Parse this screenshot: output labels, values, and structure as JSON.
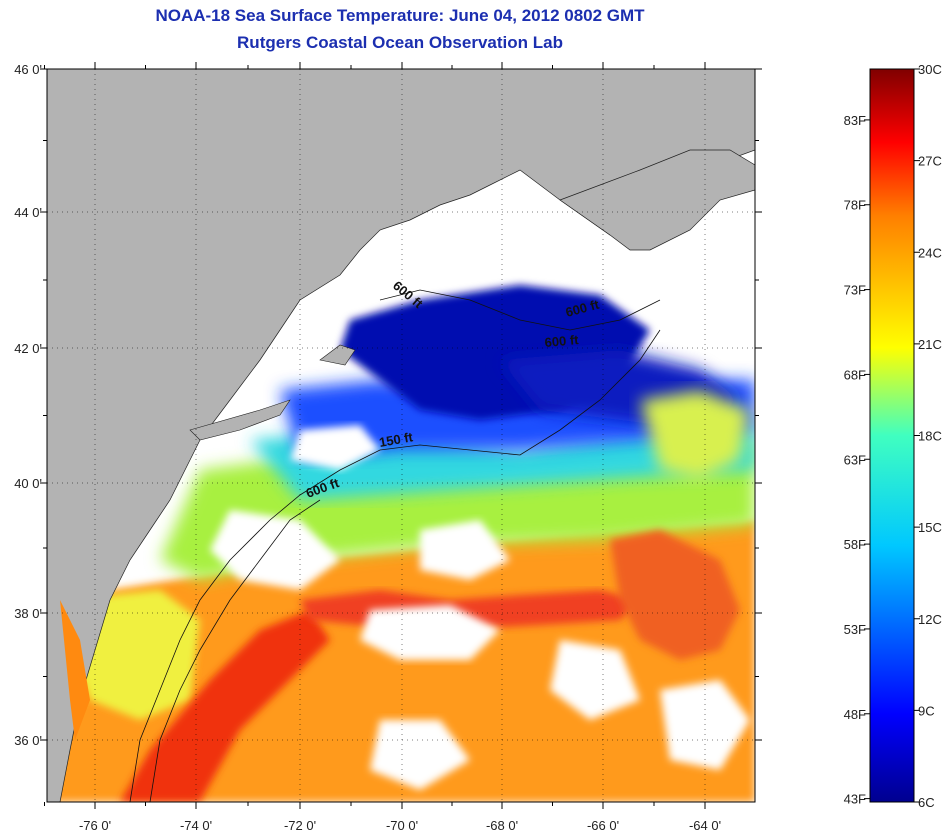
{
  "title": "NOAA-18 Sea Surface Temperature:  June 04, 2012 0802 GMT",
  "subtitle": "Rutgers Coastal Ocean Observation Lab",
  "lat_labels": [
    "46 0'",
    "44 0'",
    "42 0'",
    "40 0'",
    "38 0'",
    "36 0'"
  ],
  "lon_labels": [
    "-76 0'",
    "-74 0'",
    "-72 0'",
    "-70 0'",
    "-68 0'",
    "-66 0'",
    "-64 0'"
  ],
  "contour_labels": [
    "600 ft",
    "600 ft",
    "600 ft",
    "150 ft",
    "600 ft"
  ],
  "colorbar": {
    "fahrenheit": [
      "83F",
      "78F",
      "73F",
      "68F",
      "63F",
      "58F",
      "53F",
      "48F",
      "43F"
    ],
    "celsius": [
      "30C",
      "27C",
      "24C",
      "21C",
      "18C",
      "15C",
      "12C",
      "9C",
      "6C"
    ]
  },
  "colors": {
    "land": "#b3b3b3",
    "cloud": "#ffffff",
    "title": "#1c2fb0"
  }
}
